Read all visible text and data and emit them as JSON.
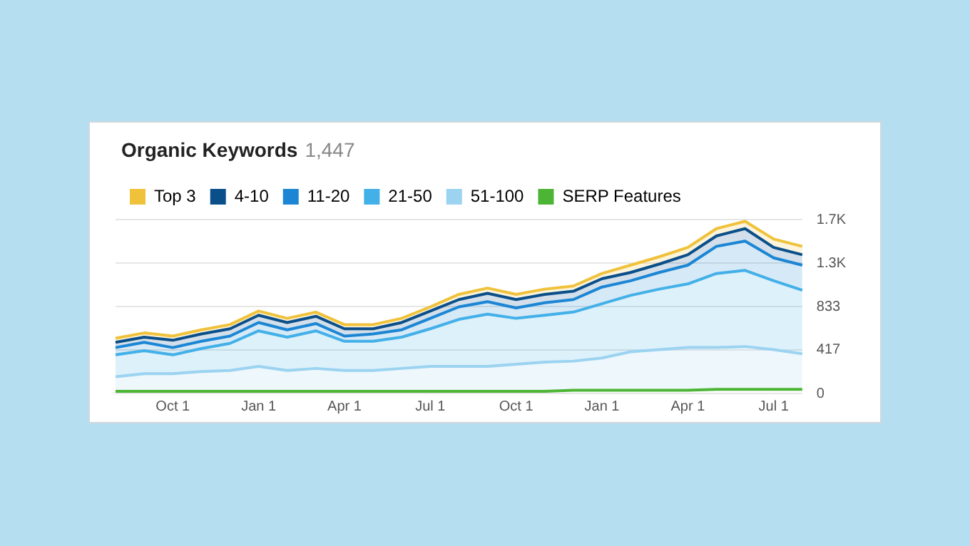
{
  "chart_data": {
    "type": "area",
    "title": "Organic Keywords",
    "subtitle": "1,447",
    "stacked": true,
    "legend": "top left",
    "grid": "y",
    "marker": "none",
    "categories": [
      null,
      null,
      "Oct 1",
      null,
      null,
      "Jan 1",
      null,
      null,
      "Apr 1",
      null,
      null,
      "Jul 1",
      null,
      null,
      "Oct 1",
      null,
      null,
      "Jan 1",
      null,
      null,
      "Apr 1",
      null,
      null,
      "Jul 1",
      null
    ],
    "ylim": [
      0,
      1667
    ],
    "yticks": [
      0,
      417,
      833,
      {
        "value": 1250,
        "label": "1.3K"
      },
      {
        "value": 1667,
        "label": "1.7K"
      }
    ],
    "series": [
      {
        "name": "SERP Features",
        "color": "#4cb535",
        "type": "line",
        "values": [
          20,
          20,
          20,
          20,
          20,
          20,
          20,
          20,
          20,
          20,
          20,
          20,
          20,
          20,
          20,
          20,
          30,
          30,
          30,
          30,
          30,
          40,
          40,
          40,
          40
        ]
      },
      {
        "name": "51-100",
        "color": "#9bd3f0",
        "values": [
          160,
          190,
          190,
          210,
          220,
          260,
          220,
          240,
          220,
          220,
          240,
          260,
          260,
          260,
          280,
          300,
          310,
          340,
          400,
          420,
          440,
          440,
          450,
          420,
          380
        ]
      },
      {
        "name": "21-50",
        "color": "#43b0e8",
        "values": [
          210,
          220,
          180,
          220,
          260,
          340,
          320,
          360,
          280,
          280,
          300,
          360,
          450,
          500,
          440,
          450,
          470,
          520,
          540,
          580,
          610,
          710,
          730,
          660,
          610
        ]
      },
      {
        "name": "11-20",
        "color": "#1c86d4",
        "values": [
          70,
          80,
          70,
          70,
          70,
          80,
          70,
          70,
          50,
          70,
          70,
          100,
          120,
          120,
          100,
          120,
          120,
          160,
          140,
          160,
          180,
          260,
          280,
          220,
          240
        ]
      },
      {
        "name": "4-10",
        "color": "#0b4f8a",
        "values": [
          50,
          50,
          70,
          70,
          70,
          70,
          70,
          70,
          70,
          50,
          70,
          70,
          70,
          80,
          80,
          80,
          80,
          80,
          80,
          80,
          100,
          100,
          120,
          100,
          100
        ]
      },
      {
        "name": "Top 3",
        "color": "#f0c23b",
        "values": [
          40,
          40,
          40,
          40,
          40,
          40,
          40,
          40,
          40,
          40,
          40,
          40,
          50,
          50,
          50,
          50,
          50,
          50,
          70,
          70,
          70,
          70,
          70,
          80,
          80
        ]
      }
    ]
  }
}
